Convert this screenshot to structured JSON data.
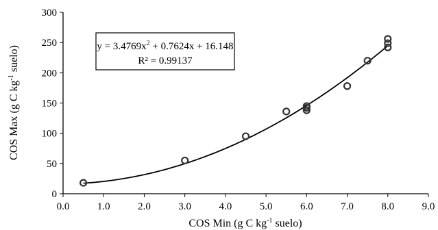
{
  "chart_data": {
    "type": "scatter",
    "xlabel": {
      "main": "COS Min (g C kg",
      "sup": "-1",
      "rest": " suelo)"
    },
    "ylabel": {
      "main": "COS Max (g C kg",
      "sup": "-1",
      "rest": " suelo)"
    },
    "xlim": [
      0,
      9
    ],
    "ylim": [
      0,
      300
    ],
    "xticks": [
      "0.0",
      "1.0",
      "2.0",
      "3.0",
      "4.0",
      "5.0",
      "6.0",
      "7.0",
      "8.0",
      "9.0"
    ],
    "yticks": [
      "0",
      "50",
      "100",
      "150",
      "200",
      "250",
      "300"
    ],
    "points": [
      {
        "x": 0.5,
        "y": 18
      },
      {
        "x": 3.0,
        "y": 55
      },
      {
        "x": 4.5,
        "y": 95
      },
      {
        "x": 5.5,
        "y": 136
      },
      {
        "x": 6.0,
        "y": 138
      },
      {
        "x": 6.0,
        "y": 142
      },
      {
        "x": 6.0,
        "y": 145
      },
      {
        "x": 7.0,
        "y": 178
      },
      {
        "x": 7.5,
        "y": 220
      },
      {
        "x": 8.0,
        "y": 242
      },
      {
        "x": 8.0,
        "y": 249
      },
      {
        "x": 8.0,
        "y": 256
      }
    ],
    "trendline": {
      "type": "polynomial",
      "coefficients": [
        3.4769,
        0.7624,
        16.148
      ],
      "x_range": [
        0.5,
        8.0
      ]
    },
    "equation": {
      "line1": {
        "a": "y = 3.4769x",
        "sup": "2",
        "b": " + 0.7624x + 16.148"
      },
      "line2": "R² = 0.99137"
    }
  }
}
